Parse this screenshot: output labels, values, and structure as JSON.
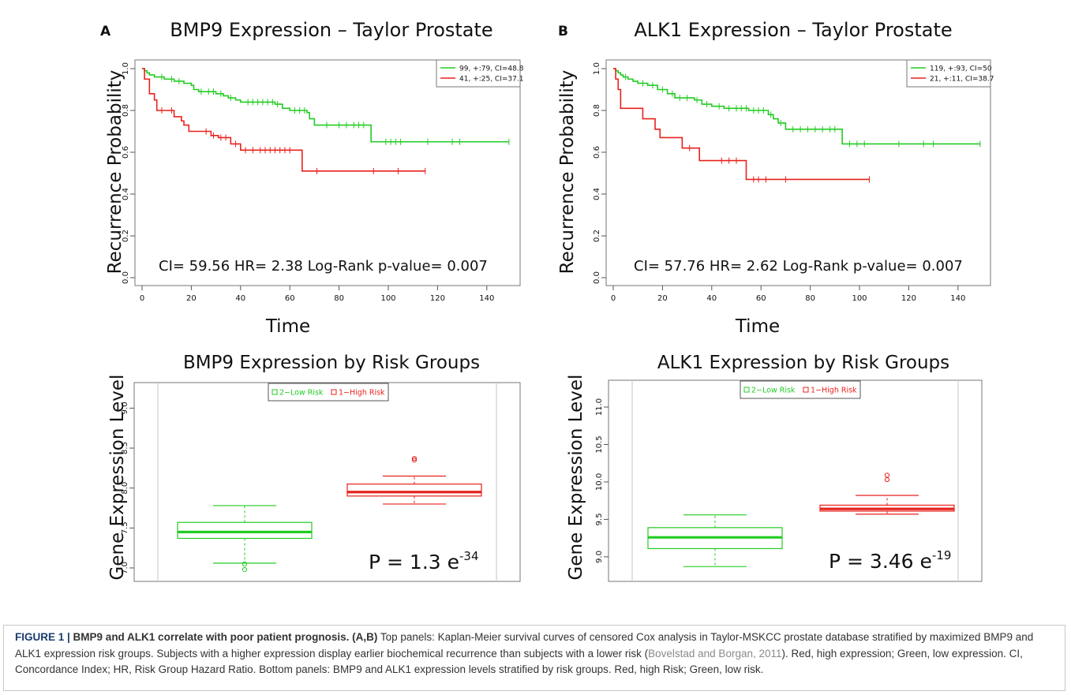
{
  "panels": [
    {
      "letter": "A",
      "km": {
        "title": "BMP9 Expression – Taylor Prostate",
        "ylabel": "Recurrence Probability",
        "xlabel": "Time",
        "stats": "CI= 59.56 HR= 2.38 Log-Rank p-value= 0.007",
        "xticks": [
          "0",
          "20",
          "40",
          "60",
          "80",
          "100",
          "120",
          "140"
        ],
        "yticks": [
          "0.0",
          "0.2",
          "0.4",
          "0.6",
          "0.8",
          "1.0"
        ],
        "legend": [
          "99, +:79, CI=48.8",
          "41, +:25, CI=37.1"
        ]
      },
      "box": {
        "title": "BMP9 Expression by Risk Groups",
        "ylabel": "Gene Expression Level",
        "yticks": [
          "7.0",
          "7.5",
          "8.0",
          "8.5",
          "9.0"
        ],
        "legend": [
          "2−Low Risk",
          "1−High Risk"
        ],
        "p_prefix": "P = 1.3 e",
        "p_exp": "-34"
      }
    },
    {
      "letter": "B",
      "km": {
        "title": "ALK1 Expression – Taylor Prostate",
        "ylabel": "Recurrence Probability",
        "xlabel": "Time",
        "stats": "CI= 57.76 HR= 2.62 Log-Rank p-value= 0.007",
        "xticks": [
          "0",
          "20",
          "40",
          "60",
          "80",
          "100",
          "120",
          "140"
        ],
        "yticks": [
          "0.0",
          "0.2",
          "0.4",
          "0.6",
          "0.8",
          "1.0"
        ],
        "legend": [
          "119, +:93, CI=50",
          "21, +:11, CI=38.7"
        ]
      },
      "box": {
        "title": "ALK1 Expression by Risk Groups",
        "ylabel": "Gene Expression Level",
        "yticks": [
          "9.0",
          "9.5",
          "10.0",
          "10.5",
          "11.0"
        ],
        "legend": [
          "2−Low Risk",
          "1−High Risk"
        ],
        "p_prefix": "P = 3.46 e",
        "p_exp": "-19"
      }
    }
  ],
  "colors": {
    "low": "#22cc22",
    "high": "#e8221c",
    "axis": "#555555",
    "text": "#111111"
  },
  "caption": {
    "label": "FIGURE 1 |",
    "sentence1": " BMP9 and ALK1 correlate with poor patient prognosis. ",
    "panels_ref": "(A,B)",
    "text1": " Top panels: Kaplan-Meier survival curves of censored Cox analysis in Taylor-MSKCC prostate database stratified by maximized BMP9 and ALK1 expression risk groups. Subjects with a higher expression display earlier biochemical recurrence than subjects with a lower risk (",
    "ref": "Bovelstad and Borgan, 2011",
    "text2": "). Red, high expression; Green, low expression. CI, Concordance Index; HR, Risk Group Hazard Ratio. Bottom panels: BMP9 and ALK1 expression levels stratified by risk groups. Red, high Risk; Green, low risk."
  },
  "chart_data": [
    {
      "type": "line",
      "subtype": "kaplan-meier",
      "title": "BMP9 Expression – Taylor Prostate",
      "xlabel": "Time",
      "ylabel": "Recurrence Probability",
      "xlim": [
        0,
        150
      ],
      "ylim": [
        0,
        1.0
      ],
      "annotation": "CI= 59.56 HR= 2.38 Log-Rank p-value= 0.007",
      "legend_position": "top-right",
      "series": [
        {
          "name": "99, +:79, CI=48.8",
          "color": "#22cc22",
          "steps": [
            [
              0,
              1.0
            ],
            [
              1,
              0.99
            ],
            [
              2,
              0.98
            ],
            [
              3,
              0.97
            ],
            [
              5,
              0.96
            ],
            [
              9,
              0.95
            ],
            [
              13,
              0.94
            ],
            [
              17,
              0.93
            ],
            [
              20,
              0.92
            ],
            [
              21,
              0.9
            ],
            [
              23,
              0.89
            ],
            [
              30,
              0.88
            ],
            [
              33,
              0.87
            ],
            [
              35,
              0.86
            ],
            [
              38,
              0.85
            ],
            [
              40,
              0.84
            ],
            [
              54,
              0.83
            ],
            [
              57,
              0.81
            ],
            [
              60,
              0.8
            ],
            [
              67,
              0.79
            ],
            [
              68,
              0.76
            ],
            [
              70,
              0.73
            ],
            [
              93,
              0.65
            ],
            [
              149,
              0.65
            ]
          ],
          "censored": [
            8,
            12,
            15,
            24,
            27,
            29,
            32,
            36,
            43,
            45,
            47,
            49,
            51,
            53,
            55,
            62,
            64,
            66,
            75,
            80,
            83,
            86,
            88,
            90,
            99,
            101,
            103,
            105,
            116,
            126,
            129,
            149
          ]
        },
        {
          "name": "41, +:25, CI=37.1",
          "color": "#e8221c",
          "steps": [
            [
              0,
              1.0
            ],
            [
              1,
              0.95
            ],
            [
              3,
              0.88
            ],
            [
              5,
              0.85
            ],
            [
              6,
              0.8
            ],
            [
              13,
              0.77
            ],
            [
              16,
              0.75
            ],
            [
              17,
              0.73
            ],
            [
              19,
              0.7
            ],
            [
              28,
              0.68
            ],
            [
              31,
              0.67
            ],
            [
              36,
              0.64
            ],
            [
              40,
              0.61
            ],
            [
              65,
              0.51
            ],
            [
              115,
              0.51
            ]
          ],
          "censored": [
            8,
            12,
            26,
            29,
            32,
            34,
            38,
            42,
            45,
            48,
            50,
            52,
            54,
            56,
            58,
            60,
            71,
            94,
            104,
            115
          ]
        }
      ]
    },
    {
      "type": "box",
      "title": "BMP9 Expression by Risk Groups",
      "ylabel": "Gene Expression Level",
      "ylim": [
        6.95,
        9.3
      ],
      "legend_position": "top-center",
      "series": [
        {
          "name": "2−Low Risk",
          "color": "#22cc22",
          "whisker_low": 7.06,
          "q1": 7.37,
          "median": 7.45,
          "q3": 7.57,
          "whisker_high": 7.78,
          "outliers": [
            7.05,
            6.98
          ]
        },
        {
          "name": "1−High Risk",
          "color": "#e8221c",
          "whisker_low": 7.8,
          "q1": 7.9,
          "median": 7.95,
          "q3": 8.05,
          "whisker_high": 8.15,
          "outliers": [
            8.35,
            8.37
          ]
        }
      ],
      "annotation": "P = 1.3 e-34"
    },
    {
      "type": "line",
      "subtype": "kaplan-meier",
      "title": "ALK1 Expression – Taylor Prostate",
      "xlabel": "Time",
      "ylabel": "Recurrence Probability",
      "xlim": [
        0,
        150
      ],
      "ylim": [
        0,
        1.0
      ],
      "annotation": "CI= 57.76 HR= 2.62 Log-Rank p-value= 0.007",
      "legend_position": "top-right",
      "series": [
        {
          "name": "119, +:93, CI=50",
          "color": "#22cc22",
          "steps": [
            [
              0,
              1.0
            ],
            [
              1,
              0.99
            ],
            [
              2,
              0.98
            ],
            [
              3,
              0.97
            ],
            [
              4,
              0.96
            ],
            [
              6,
              0.95
            ],
            [
              8,
              0.94
            ],
            [
              10,
              0.93
            ],
            [
              14,
              0.92
            ],
            [
              18,
              0.9
            ],
            [
              22,
              0.88
            ],
            [
              25,
              0.86
            ],
            [
              33,
              0.85
            ],
            [
              36,
              0.83
            ],
            [
              40,
              0.82
            ],
            [
              45,
              0.81
            ],
            [
              55,
              0.8
            ],
            [
              63,
              0.78
            ],
            [
              65,
              0.76
            ],
            [
              67,
              0.74
            ],
            [
              70,
              0.71
            ],
            [
              93,
              0.64
            ],
            [
              149,
              0.64
            ]
          ],
          "censored": [
            5,
            12,
            16,
            20,
            24,
            27,
            30,
            34,
            38,
            43,
            47,
            50,
            52,
            54,
            57,
            59,
            61,
            64,
            68,
            73,
            76,
            79,
            82,
            85,
            88,
            90,
            96,
            99,
            102,
            116,
            126,
            130,
            149
          ]
        },
        {
          "name": "21, +:11, CI=38.7",
          "color": "#e8221c",
          "steps": [
            [
              0,
              1.0
            ],
            [
              1,
              0.95
            ],
            [
              2,
              0.9
            ],
            [
              3,
              0.81
            ],
            [
              12,
              0.76
            ],
            [
              17,
              0.71
            ],
            [
              19,
              0.67
            ],
            [
              28,
              0.62
            ],
            [
              35,
              0.56
            ],
            [
              54,
              0.47
            ],
            [
              104,
              0.47
            ]
          ],
          "censored": [
            31,
            44,
            47,
            50,
            57,
            59,
            62,
            70,
            104
          ]
        }
      ]
    },
    {
      "type": "box",
      "title": "ALK1 Expression by Risk Groups",
      "ylabel": "Gene Expression Level",
      "ylim": [
        8.83,
        11.2
      ],
      "legend_position": "top-center",
      "series": [
        {
          "name": "2−Low Risk",
          "color": "#22cc22",
          "whisker_low": 8.87,
          "q1": 9.11,
          "median": 9.26,
          "q3": 9.39,
          "whisker_high": 9.56,
          "outliers": []
        },
        {
          "name": "1−High Risk",
          "color": "#e8221c",
          "whisker_low": 9.57,
          "q1": 9.61,
          "median": 9.64,
          "q3": 9.69,
          "whisker_high": 9.82,
          "outliers": [
            10.03,
            10.09
          ]
        }
      ],
      "annotation": "P = 3.46 e-19"
    }
  ]
}
